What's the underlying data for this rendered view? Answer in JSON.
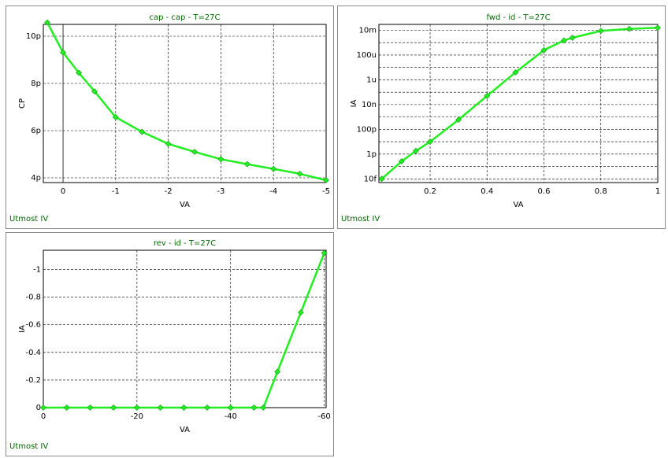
{
  "chart_data": [
    {
      "type": "line",
      "title": "cap - cap - T=27C",
      "x_label": "VA",
      "y_label": "CP",
      "footer": "Utmost IV",
      "x": [
        0.3,
        0,
        -0.3,
        -0.6,
        -1,
        -1.5,
        -2,
        -2.5,
        -3,
        -3.5,
        -4,
        -4.5,
        -5
      ],
      "series": [
        {
          "color": "#22ee22",
          "values": [
            1.058e-11,
            9.31e-12,
            8.45e-12,
            7.66e-12,
            6.57e-12,
            5.95e-12,
            5.44e-12,
            5.1e-12,
            4.79e-12,
            4.58e-12,
            4.38e-12,
            4.17e-12,
            3.9e-12
          ]
        }
      ],
      "xlim": [
        0.375,
        -5
      ],
      "xticks": [
        0,
        -1,
        -2,
        -3,
        -4,
        -5
      ],
      "ylim": [
        3.8e-12,
        1.05e-11
      ],
      "yticks": [
        {
          "value": 4e-12,
          "label": "4p"
        },
        {
          "value": 6e-12,
          "label": "6p"
        },
        {
          "value": 8e-12,
          "label": "8p"
        },
        {
          "value": 1e-11,
          "label": "10p"
        }
      ],
      "grid": true,
      "log_y": false
    },
    {
      "type": "line",
      "title": "fwd - id - T=27C",
      "x_label": "VA",
      "y_label": "IA",
      "footer": "Utmost IV",
      "x": [
        0.03,
        0.1,
        0.15,
        0.2,
        0.3,
        0.4,
        0.5,
        0.6,
        0.67,
        0.7,
        0.8,
        0.9,
        1
      ],
      "series": [
        {
          "color": "#22ee22",
          "values": [
            1e-14,
            2.6e-13,
            1.8e-12,
            1e-11,
            6e-10,
            5e-08,
            4e-06,
            0.00025,
            0.0015,
            0.0025,
            0.009,
            0.013,
            0.016
          ]
        }
      ],
      "xlim": [
        0.02,
        1
      ],
      "xticks": [
        0.2,
        0.4,
        0.6,
        0.8,
        1
      ],
      "ylim": [
        5e-15,
        0.03
      ],
      "yticks": [
        {
          "value": 1e-14,
          "label": "10f"
        },
        {
          "value": 1e-12,
          "label": "1p"
        },
        {
          "value": 1e-10,
          "label": "100p"
        },
        {
          "value": 1e-08,
          "label": "10n"
        },
        {
          "value": 1e-06,
          "label": "1u"
        },
        {
          "value": 0.0001,
          "label": "100u"
        },
        {
          "value": 0.01,
          "label": "10m"
        }
      ],
      "yticks_minor": [
        1e-13,
        1e-11,
        1e-09,
        1e-07,
        1e-05,
        0.001
      ],
      "grid": true,
      "log_y": true
    },
    {
      "type": "line",
      "title": "rev - id - T=27C",
      "x_label": "VA",
      "y_label": "IA",
      "footer": "Utmost IV",
      "x": [
        0,
        -5,
        -10,
        -15,
        -20,
        -25,
        -30,
        -35,
        -40,
        -45,
        -47,
        -50,
        -55,
        -60
      ],
      "series": [
        {
          "color": "#22ee22",
          "values": [
            0,
            0,
            0,
            0,
            0,
            0,
            0,
            0,
            0,
            0,
            0,
            -0.26,
            -0.69,
            -1.12
          ]
        }
      ],
      "xlim": [
        0,
        -60.4
      ],
      "xticks": [
        0,
        -20,
        -40,
        -60
      ],
      "ylim": [
        0,
        -1.14
      ],
      "yticks": [
        0,
        -0.2,
        -0.4,
        -0.6,
        -0.8,
        -1
      ],
      "grid": true,
      "log_y": false
    }
  ]
}
